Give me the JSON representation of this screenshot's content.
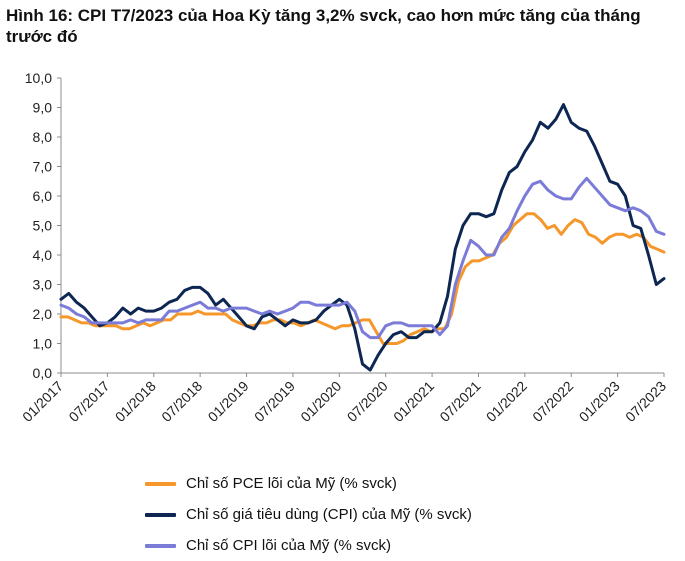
{
  "figure": {
    "title": "Hình 16: CPI T7/2023 của Hoa Kỳ tăng 3,2% svck, cao hơn mức tăng của tháng trước đó"
  },
  "chart_data": {
    "type": "line",
    "title": "Hình 16: CPI T7/2023 của Hoa Kỳ tăng 3,2% svck, cao hơn mức tăng của tháng trước đó",
    "xlabel": "",
    "ylabel": "",
    "ylim": [
      0,
      10
    ],
    "y_ticks": [
      "0,0",
      "1,0",
      "2,0",
      "3,0",
      "4,0",
      "5,0",
      "6,0",
      "7,0",
      "8,0",
      "9,0",
      "10,0"
    ],
    "x_tick_labels": [
      "01/2017",
      "07/2017",
      "01/2018",
      "07/2018",
      "01/2019",
      "07/2019",
      "01/2020",
      "07/2020",
      "01/2021",
      "07/2021",
      "01/2022",
      "07/2022",
      "01/2023",
      "07/2023"
    ],
    "x_start": "01/2017",
    "x_end": "07/2023",
    "grid": false,
    "legend_position": "bottom",
    "series": [
      {
        "name": "Chỉ số PCE lõi của Mỹ (% svck)",
        "color": "#F5972A",
        "values": [
          1.9,
          1.9,
          1.8,
          1.7,
          1.7,
          1.6,
          1.6,
          1.6,
          1.6,
          1.5,
          1.5,
          1.6,
          1.7,
          1.6,
          1.7,
          1.8,
          1.8,
          2.0,
          2.0,
          2.0,
          2.1,
          2.0,
          2.0,
          2.0,
          2.0,
          1.8,
          1.7,
          1.6,
          1.6,
          1.7,
          1.7,
          1.8,
          1.8,
          1.7,
          1.7,
          1.6,
          1.7,
          1.8,
          1.7,
          1.6,
          1.5,
          1.6,
          1.6,
          1.7,
          1.8,
          1.8,
          1.4,
          1.0,
          1.0,
          1.0,
          1.1,
          1.3,
          1.4,
          1.5,
          1.4,
          1.5,
          1.5,
          2.0,
          3.1,
          3.6,
          3.8,
          3.8,
          3.9,
          4.0,
          4.4,
          4.6,
          5.0,
          5.2,
          5.4,
          5.4,
          5.2,
          4.9,
          5.0,
          4.7,
          5.0,
          5.2,
          5.1,
          4.7,
          4.6,
          4.4,
          4.6,
          4.7,
          4.7,
          4.6,
          4.7,
          4.6,
          4.3,
          4.2,
          4.1
        ]
      },
      {
        "name": "Chỉ số giá tiêu dùng (CPI) của Mỹ (% svck)",
        "color": "#0D2752",
        "values": [
          2.5,
          2.7,
          2.4,
          2.2,
          1.9,
          1.6,
          1.7,
          1.9,
          2.2,
          2.0,
          2.2,
          2.1,
          2.1,
          2.2,
          2.4,
          2.5,
          2.8,
          2.9,
          2.9,
          2.7,
          2.3,
          2.5,
          2.2,
          1.9,
          1.6,
          1.5,
          1.9,
          2.0,
          1.8,
          1.6,
          1.8,
          1.7,
          1.7,
          1.8,
          2.1,
          2.3,
          2.5,
          2.3,
          1.5,
          0.3,
          0.1,
          0.6,
          1.0,
          1.3,
          1.4,
          1.2,
          1.2,
          1.4,
          1.4,
          1.7,
          2.6,
          4.2,
          5.0,
          5.4,
          5.4,
          5.3,
          5.4,
          6.2,
          6.8,
          7.0,
          7.5,
          7.9,
          8.5,
          8.3,
          8.6,
          9.1,
          8.5,
          8.3,
          8.2,
          7.7,
          7.1,
          6.5,
          6.4,
          6.0,
          5.0,
          4.9,
          4.0,
          3.0,
          3.2
        ],
        "x_offset": 9
      },
      {
        "name": "Chỉ số CPI lõi của Mỹ (% svck)",
        "color": "#7B7BD8",
        "values": [
          2.3,
          2.2,
          2.0,
          1.9,
          1.7,
          1.7,
          1.7,
          1.7,
          1.7,
          1.8,
          1.7,
          1.8,
          1.8,
          1.8,
          2.1,
          2.1,
          2.2,
          2.3,
          2.4,
          2.2,
          2.2,
          2.1,
          2.2,
          2.2,
          2.2,
          2.1,
          2.0,
          2.1,
          2.0,
          2.1,
          2.2,
          2.4,
          2.4,
          2.3,
          2.3,
          2.3,
          2.3,
          2.4,
          2.1,
          1.4,
          1.2,
          1.2,
          1.6,
          1.7,
          1.7,
          1.6,
          1.6,
          1.6,
          1.6,
          1.3,
          1.6,
          3.0,
          3.8,
          4.5,
          4.3,
          4.0,
          4.0,
          4.6,
          4.9,
          5.5,
          6.0,
          6.4,
          6.5,
          6.2,
          6.0,
          5.9,
          5.9,
          6.3,
          6.6,
          6.3,
          6.0,
          5.7,
          5.6,
          5.5,
          5.6,
          5.5,
          5.3,
          4.8,
          4.7
        ]
      }
    ]
  }
}
